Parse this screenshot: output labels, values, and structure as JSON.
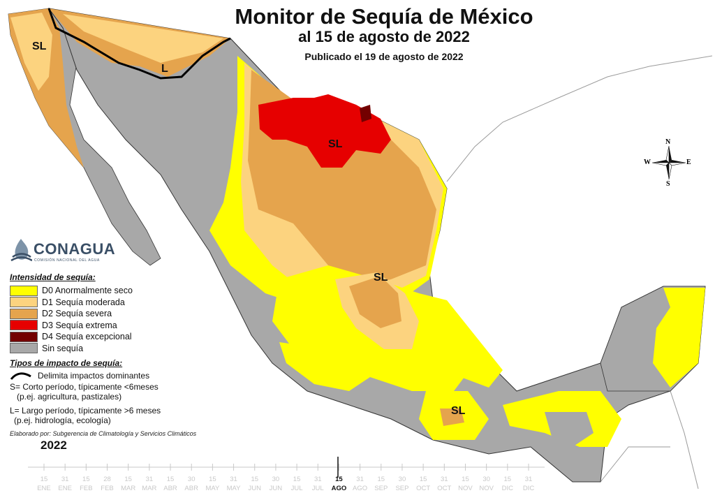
{
  "header": {
    "title": "Monitor de Sequía de México",
    "subtitle": "al 15 de agosto de 2022",
    "published": "Publicado el 19 de agosto de 2022"
  },
  "logo": {
    "name": "CONAGUA",
    "sub": "COMISIÓN NACIONAL DEL AGUA"
  },
  "legend": {
    "intensity_title": "Intensidad de sequía:",
    "categories": [
      {
        "label": "D0 Anormalmente seco",
        "color": "#ffff00"
      },
      {
        "label": "D1 Sequía moderada",
        "color": "#fcd37f"
      },
      {
        "label": "D2 Sequía severa",
        "color": "#e5a44d"
      },
      {
        "label": "D3 Sequía extrema",
        "color": "#e60000"
      },
      {
        "label": "D4 Sequía excepcional",
        "color": "#730000"
      },
      {
        "label": "Sin sequía",
        "color": "#a8a8a8"
      }
    ],
    "impact_title": "Tipos de impacto de sequía:",
    "impact_line": "Delimita impactos dominantes",
    "impact_s": "S= Corto período, típicamente <6meses",
    "impact_s_ex": "(p.ej. agricultura, pastizales)",
    "impact_l": "L= Largo período, típicamente >6 meses",
    "impact_l_ex": "(p.ej. hidrología, ecología)"
  },
  "credit": "Elaborado por: Subgerencia de Climatología y Servicios Climáticos",
  "year": "2022",
  "map_labels": {
    "sl_baja": "SL",
    "l_north": "L",
    "sl_north": "SL",
    "sl_center": "SL",
    "sl_south": "SL"
  },
  "compass": {
    "n": "N",
    "s": "S",
    "e": "E",
    "w": "W"
  },
  "timeline": {
    "days": [
      "15",
      "31",
      "15",
      "28",
      "15",
      "31",
      "15",
      "30",
      "15",
      "31",
      "15",
      "30",
      "15",
      "31",
      "15",
      "31",
      "15",
      "30",
      "15",
      "31",
      "15",
      "30",
      "15",
      "31"
    ],
    "months": [
      "ENE",
      "ENE",
      "FEB",
      "FEB",
      "MAR",
      "MAR",
      "ABR",
      "ABR",
      "MAY",
      "MAY",
      "JUN",
      "JUN",
      "JUL",
      "JUL",
      "AGO",
      "AGO",
      "SEP",
      "SEP",
      "OCT",
      "OCT",
      "NOV",
      "NOV",
      "DIC",
      "DIC"
    ],
    "active_index": 14
  }
}
